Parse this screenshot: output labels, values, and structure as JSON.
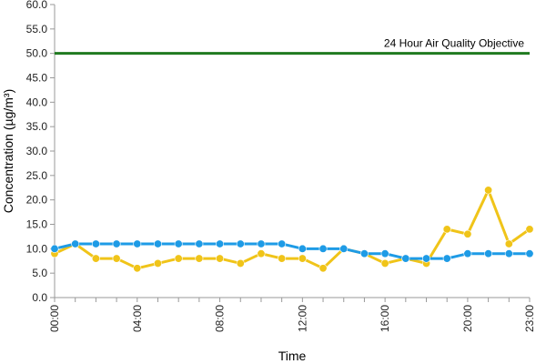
{
  "chart_data": {
    "type": "line",
    "title": "",
    "xlabel": "Time",
    "ylabel": "Concentration (µg/m³)",
    "ylim": [
      0,
      60
    ],
    "yticks": [
      "0.0",
      "5.0",
      "10.0",
      "15.0",
      "20.0",
      "25.0",
      "30.0",
      "35.0",
      "40.0",
      "45.0",
      "50.0",
      "55.0",
      "60.0"
    ],
    "yticks_values": [
      0,
      5,
      10,
      15,
      20,
      25,
      30,
      35,
      40,
      45,
      50,
      55,
      60
    ],
    "xticks": [
      "00:00",
      "04:00",
      "08:00",
      "12:00",
      "16:00",
      "20:00",
      "23:00"
    ],
    "xticks_hours": [
      0,
      4,
      8,
      12,
      16,
      20,
      23
    ],
    "x": [
      "00:00",
      "01:00",
      "02:00",
      "03:00",
      "04:00",
      "05:00",
      "06:00",
      "07:00",
      "08:00",
      "09:00",
      "10:00",
      "11:00",
      "12:00",
      "13:00",
      "14:00",
      "15:00",
      "16:00",
      "17:00",
      "18:00",
      "19:00",
      "20:00",
      "21:00",
      "22:00",
      "23:00"
    ],
    "series": [
      {
        "color": "#f0c419",
        "values": [
          9,
          11,
          8,
          8,
          6,
          7,
          8,
          8,
          8,
          7,
          9,
          8,
          8,
          6,
          10,
          9,
          7,
          8,
          7,
          14,
          13,
          22,
          11,
          14
        ]
      },
      {
        "color": "#1e9be6",
        "values": [
          10,
          11,
          11,
          11,
          11,
          11,
          11,
          11,
          11,
          11,
          11,
          11,
          10,
          10,
          10,
          9,
          9,
          8,
          8,
          8,
          9,
          9,
          9,
          9
        ]
      }
    ],
    "objective": {
      "label": "24 Hour Air Quality Objective",
      "value": 50,
      "color": "#1f7a1f"
    },
    "grid": false,
    "legend": "none"
  }
}
